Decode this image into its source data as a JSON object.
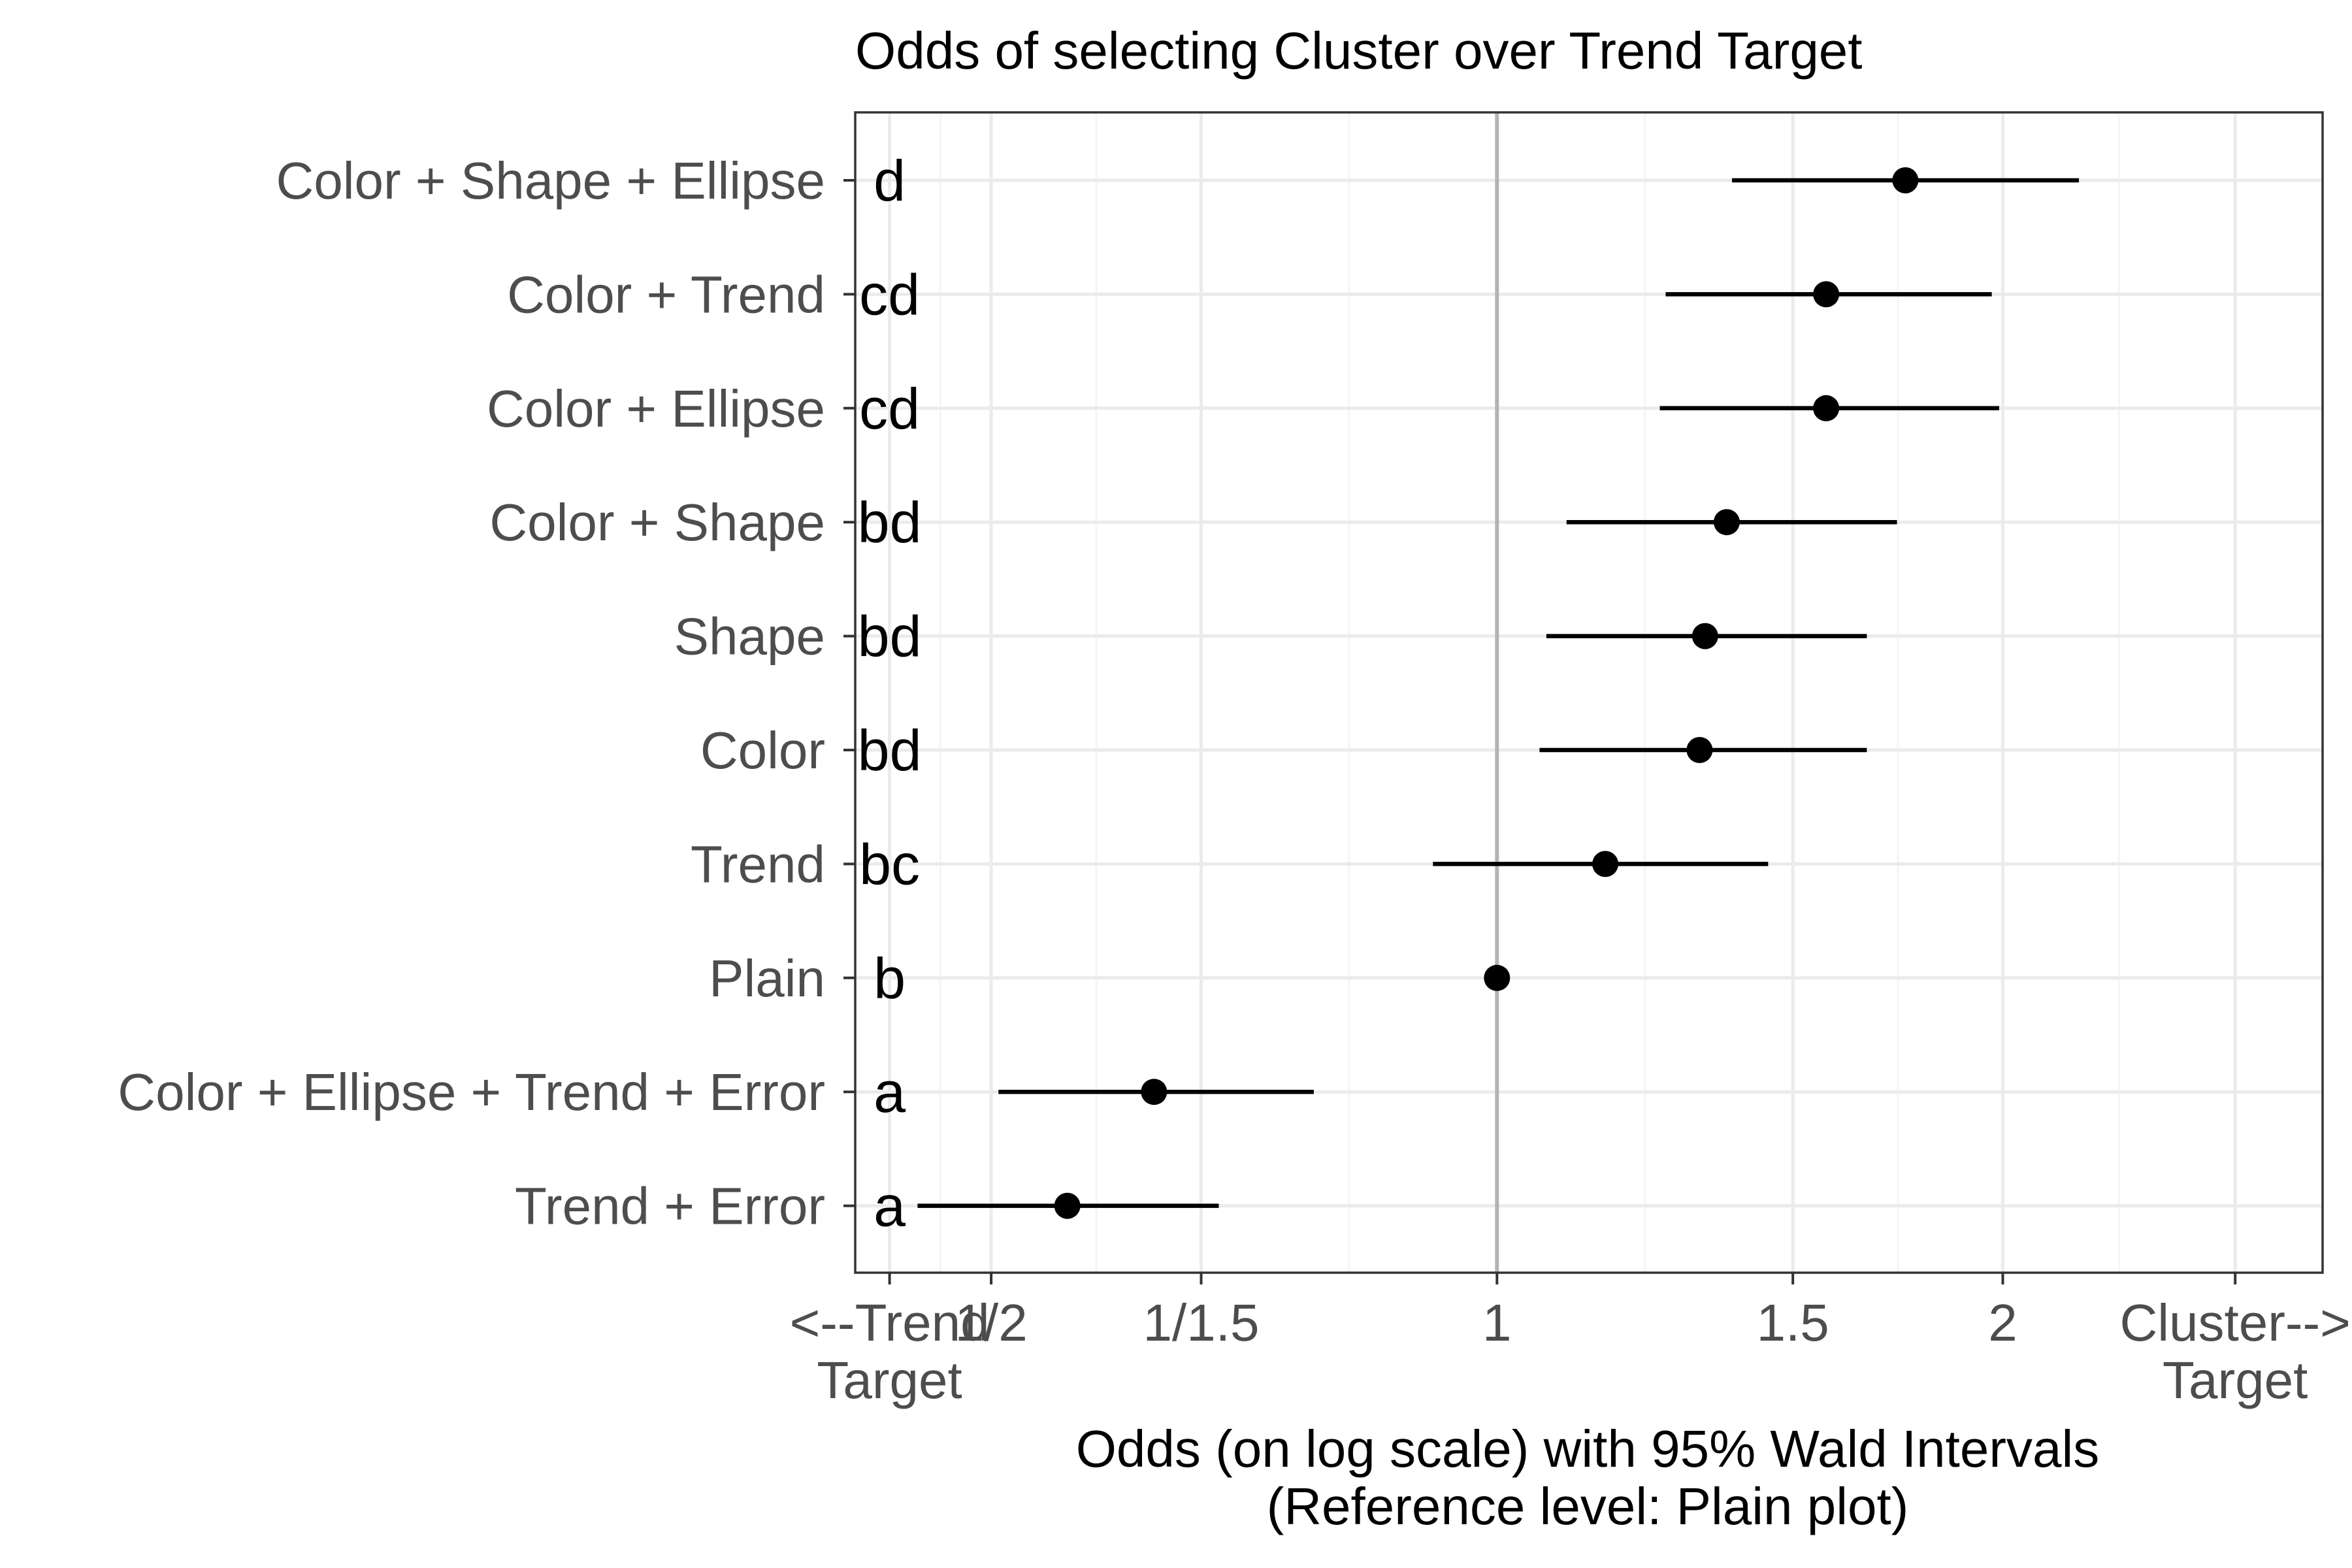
{
  "chart_data": {
    "type": "forest",
    "title": "Odds of selecting Cluster over Trend Target",
    "xlabel": [
      "Odds (on log scale) with 95% Wald Intervals",
      "(Reference level: Plain plot)"
    ],
    "x_scale": "log",
    "xlim": [
      0.415,
      3.1
    ],
    "x_ticks": [
      {
        "value": 0.435,
        "label": [
          "<--Trend",
          "Target"
        ]
      },
      {
        "value": 0.5,
        "label": [
          "1/2"
        ]
      },
      {
        "value": 0.6667,
        "label": [
          "1/1.5"
        ]
      },
      {
        "value": 1,
        "label": [
          "1"
        ]
      },
      {
        "value": 1.5,
        "label": [
          "1.5"
        ]
      },
      {
        "value": 2,
        "label": [
          "2"
        ]
      },
      {
        "value": 2.75,
        "label": [
          "Cluster-->",
          "Target"
        ]
      }
    ],
    "minor_gridlines": [
      0.4664,
      0.5774,
      0.8165,
      1.2247,
      1.7321,
      2.3452
    ],
    "reference_line": 1,
    "grid": true,
    "rows": [
      {
        "label": "Color + Shape + Ellipse",
        "group": "d",
        "estimate": 1.75,
        "lower": 1.38,
        "upper": 2.22
      },
      {
        "label": "Color + Trend",
        "group": "cd",
        "estimate": 1.57,
        "lower": 1.26,
        "upper": 1.97
      },
      {
        "label": "Color + Ellipse",
        "group": "cd",
        "estimate": 1.57,
        "lower": 1.25,
        "upper": 1.99
      },
      {
        "label": "Color + Shape",
        "group": "bd",
        "estimate": 1.37,
        "lower": 1.1,
        "upper": 1.73
      },
      {
        "label": "Shape",
        "group": "bd",
        "estimate": 1.33,
        "lower": 1.07,
        "upper": 1.66
      },
      {
        "label": "Color",
        "group": "bd",
        "estimate": 1.32,
        "lower": 1.06,
        "upper": 1.66
      },
      {
        "label": "Trend",
        "group": "bc",
        "estimate": 1.16,
        "lower": 0.916,
        "upper": 1.45
      },
      {
        "label": "Plain",
        "group": "b",
        "estimate": 1,
        "lower": 1,
        "upper": 1
      },
      {
        "label": "Color + Ellipse + Trend + Error",
        "group": "a",
        "estimate": 0.625,
        "lower": 0.505,
        "upper": 0.778
      },
      {
        "label": "Trend + Error",
        "group": "a",
        "estimate": 0.555,
        "lower": 0.452,
        "upper": 0.683
      }
    ],
    "colors": {
      "points": "#000000",
      "intervals": "#000000",
      "reference_line": "#b3b3b3",
      "grid_major": "#ebebeb",
      "grid_minor": "#f5f5f5",
      "panel_border": "#333333",
      "axis_text": "#4d4d4d"
    }
  }
}
